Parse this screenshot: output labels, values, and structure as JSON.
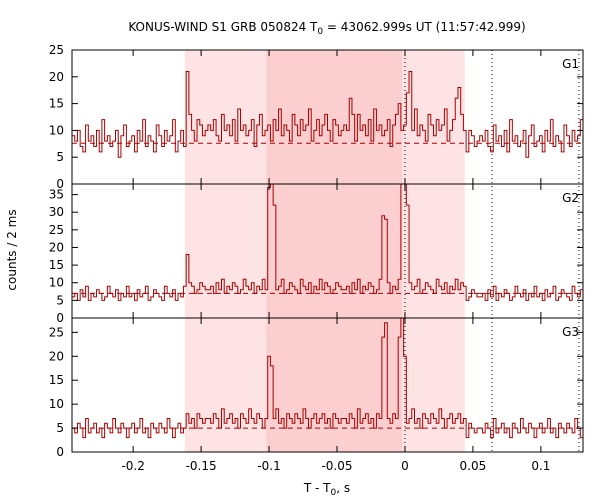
{
  "chart_data": {
    "type": "line",
    "title_main": "KONUS-WIND S1 GRB 050824 T",
    "title_sub": "0",
    "title_rest": " = 43062.999s UT (11:57:42.999)",
    "xlabel_main": "T - T",
    "xlabel_sub": "0",
    "xlabel_rest": ", s",
    "ylabel": "counts / 2 ms",
    "xlim": [
      -0.245,
      0.131
    ],
    "x_ticks": [
      -0.2,
      -0.15,
      -0.1,
      -0.05,
      0,
      0.05,
      0.1
    ],
    "x_tick_labels": [
      "-0.2",
      "-0.15",
      "-0.1",
      "-0.05",
      "0",
      "0.05",
      "0.1"
    ],
    "shaded_intervals": [
      {
        "x0": -0.162,
        "x1": 0.044,
        "color": "#fde3e3"
      },
      {
        "x0": -0.102,
        "x1": -0.002,
        "color": "#fbcfd0"
      }
    ],
    "reference_lines_x": [
      0,
      0.064,
      0.128
    ],
    "line_color": "#aa0000",
    "panels": [
      {
        "name": "G1",
        "ylim": [
          0,
          25
        ],
        "y_ticks": [
          0,
          5,
          10,
          15,
          20,
          25
        ],
        "background_level": 7.6,
        "pattern": [
          9,
          8,
          10,
          7,
          6,
          11,
          8,
          9,
          7,
          10,
          6,
          12,
          8,
          9,
          7,
          8,
          10,
          5,
          9,
          11,
          7,
          8,
          9,
          6,
          10,
          8,
          12,
          7,
          9,
          8,
          6,
          11,
          9,
          7,
          10,
          8,
          9,
          12,
          6,
          8,
          10,
          7,
          9,
          11,
          8,
          6,
          10,
          9,
          7,
          8
        ],
        "burst": [
          {
            "x": -0.161,
            "add": 10
          },
          {
            "x": -0.04,
            "add": 4
          },
          {
            "x": -0.005,
            "add": 6
          },
          {
            "x": 0.002,
            "add": 9
          },
          {
            "x": 0.038,
            "add": 7
          }
        ]
      },
      {
        "name": "G2",
        "ylim": [
          0,
          38
        ],
        "y_ticks": [
          0,
          5,
          10,
          15,
          20,
          25,
          30,
          35
        ],
        "background_level": 7,
        "pattern": [
          6,
          7,
          5,
          8,
          6,
          9,
          5,
          7,
          6,
          8,
          7,
          5,
          6,
          9,
          7,
          6,
          8,
          5,
          7,
          6,
          9,
          6,
          7,
          5,
          8,
          6,
          7,
          9,
          5,
          6,
          8,
          7,
          6,
          5,
          9,
          7,
          6,
          8,
          5,
          7,
          6,
          9,
          6,
          8,
          7,
          5,
          6,
          8,
          7,
          6
        ],
        "burst": [
          {
            "x": -0.161,
            "add": 10
          },
          {
            "x": -0.1,
            "add": 28
          },
          {
            "x": -0.098,
            "add": 22
          },
          {
            "x": -0.016,
            "add": 20
          },
          {
            "x": -0.002,
            "add": 30
          },
          {
            "x": 0.0,
            "add": 25
          }
        ]
      },
      {
        "name": "G3",
        "ylim": [
          0,
          28
        ],
        "y_ticks": [
          0,
          5,
          10,
          15,
          20,
          25
        ],
        "background_level": 5,
        "pattern": [
          5,
          4,
          6,
          5,
          3,
          7,
          4,
          5,
          6,
          4,
          5,
          3,
          6,
          5,
          4,
          7,
          5,
          4,
          6,
          5,
          3,
          5,
          6,
          4,
          5,
          7,
          4,
          5,
          3,
          6,
          5,
          4,
          6,
          5,
          4,
          7,
          5,
          3,
          5,
          6,
          4,
          5,
          6,
          4,
          5,
          3,
          6,
          5,
          4,
          5
        ],
        "burst": [
          {
            "x": -0.1,
            "add": 12
          },
          {
            "x": -0.016,
            "add": 18
          },
          {
            "x": -0.004,
            "add": 19
          },
          {
            "x": -0.002,
            "add": 12
          }
        ]
      }
    ]
  }
}
